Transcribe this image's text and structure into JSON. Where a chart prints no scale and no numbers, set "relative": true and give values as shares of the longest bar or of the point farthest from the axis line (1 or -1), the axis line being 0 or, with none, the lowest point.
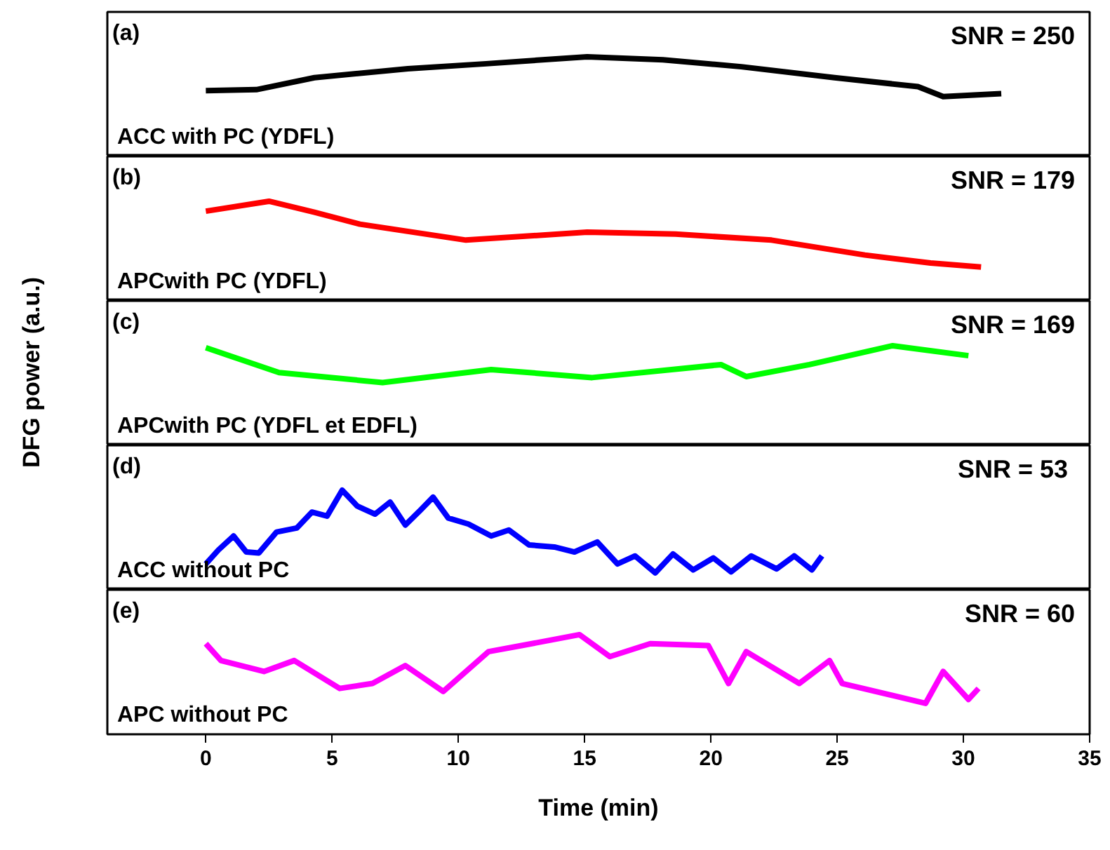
{
  "chart_data": [
    {
      "type": "line",
      "relative": true,
      "xlim": [
        -3.9,
        35
      ],
      "tick_labels": false,
      "grid": false,
      "annotations": [
        "(a)",
        "SNR = 250",
        "ACC with PC (YDFL)"
      ],
      "series": [
        {
          "color": "#000000",
          "x": [
            0,
            2,
            4.3,
            8,
            11.1,
            15.1,
            18.1,
            21.2,
            24.9,
            28.2,
            29.2,
            31.5
          ],
          "values": [
            0.66,
            0.67,
            0.79,
            0.88,
            0.93,
            1.0,
            0.97,
            0.9,
            0.79,
            0.7,
            0.6,
            0.63
          ]
        }
      ]
    },
    {
      "type": "line",
      "relative": true,
      "xlim": [
        -3.9,
        35
      ],
      "tick_labels": false,
      "grid": false,
      "annotations": [
        "(b)",
        "SNR = 179",
        "APCwith PC (YDFL)"
      ],
      "series": [
        {
          "color": "#ff0000",
          "x": [
            0,
            2.5,
            4.3,
            6.1,
            10.3,
            15.1,
            18.6,
            22.4,
            26.1,
            28.7,
            30.7
          ],
          "values": [
            0.9,
            1.0,
            0.89,
            0.77,
            0.61,
            0.69,
            0.67,
            0.61,
            0.46,
            0.38,
            0.34
          ]
        }
      ]
    },
    {
      "type": "line",
      "relative": true,
      "xlim": [
        -3.9,
        35
      ],
      "tick_labels": false,
      "grid": false,
      "ylabel": "DFG power (a.u.)",
      "annotations": [
        "(c)",
        "SNR = 169",
        "APCwith PC (YDFL et EDFL)"
      ],
      "series": [
        {
          "color": "#00ff00",
          "x": [
            0,
            2.9,
            7,
            11.3,
            15.3,
            20.4,
            21.4,
            23.9,
            27.2,
            30.2
          ],
          "values": [
            0.98,
            0.73,
            0.63,
            0.76,
            0.68,
            0.81,
            0.69,
            0.81,
            1.0,
            0.9
          ]
        }
      ]
    },
    {
      "type": "line",
      "relative": true,
      "xlim": [
        -3.9,
        35
      ],
      "tick_labels": false,
      "grid": false,
      "annotations": [
        "(d)",
        "SNR  = 53",
        "ACC without PC"
      ],
      "series": [
        {
          "color": "#0000ff",
          "x": [
            0,
            0.5,
            1.1,
            1.6,
            2.1,
            2.8,
            3.6,
            4.2,
            4.8,
            5.4,
            6.0,
            6.7,
            7.3,
            7.9,
            8.5,
            9.0,
            9.6,
            10.4,
            11.3,
            12.0,
            12.8,
            13.8,
            14.6,
            15.5,
            16.3,
            17.0,
            17.8,
            18.5,
            19.3,
            20.1,
            20.8,
            21.6,
            22.6,
            23.3,
            24.0,
            24.4
          ],
          "values": [
            0.26,
            0.4,
            0.54,
            0.38,
            0.37,
            0.58,
            0.62,
            0.78,
            0.74,
            1.0,
            0.84,
            0.76,
            0.88,
            0.65,
            0.8,
            0.93,
            0.72,
            0.66,
            0.54,
            0.6,
            0.45,
            0.43,
            0.38,
            0.48,
            0.26,
            0.34,
            0.17,
            0.36,
            0.2,
            0.32,
            0.18,
            0.34,
            0.21,
            0.34,
            0.2,
            0.34
          ]
        }
      ]
    },
    {
      "type": "line",
      "relative": true,
      "xlim": [
        -3.9,
        35
      ],
      "xticks": [
        0,
        5,
        10,
        15,
        20,
        25,
        30,
        35
      ],
      "tick_labels": "x",
      "grid": false,
      "xlabel": "Time (min)",
      "annotations": [
        "(e)",
        "SNR = 60",
        "APC without PC"
      ],
      "series": [
        {
          "color": "#ff00ff",
          "x": [
            0,
            0.6,
            2.3,
            3.5,
            5.3,
            6.6,
            7.9,
            9.4,
            11.2,
            12.5,
            14.8,
            16,
            17.6,
            19.9,
            20.7,
            21.4,
            23.5,
            24.7,
            25.2,
            28.5,
            29.2,
            30.2,
            30.6
          ],
          "values": [
            0.91,
            0.74,
            0.63,
            0.74,
            0.46,
            0.51,
            0.69,
            0.43,
            0.83,
            0.89,
            1.0,
            0.78,
            0.91,
            0.89,
            0.51,
            0.83,
            0.51,
            0.74,
            0.51,
            0.31,
            0.63,
            0.35,
            0.46
          ]
        }
      ]
    }
  ]
}
